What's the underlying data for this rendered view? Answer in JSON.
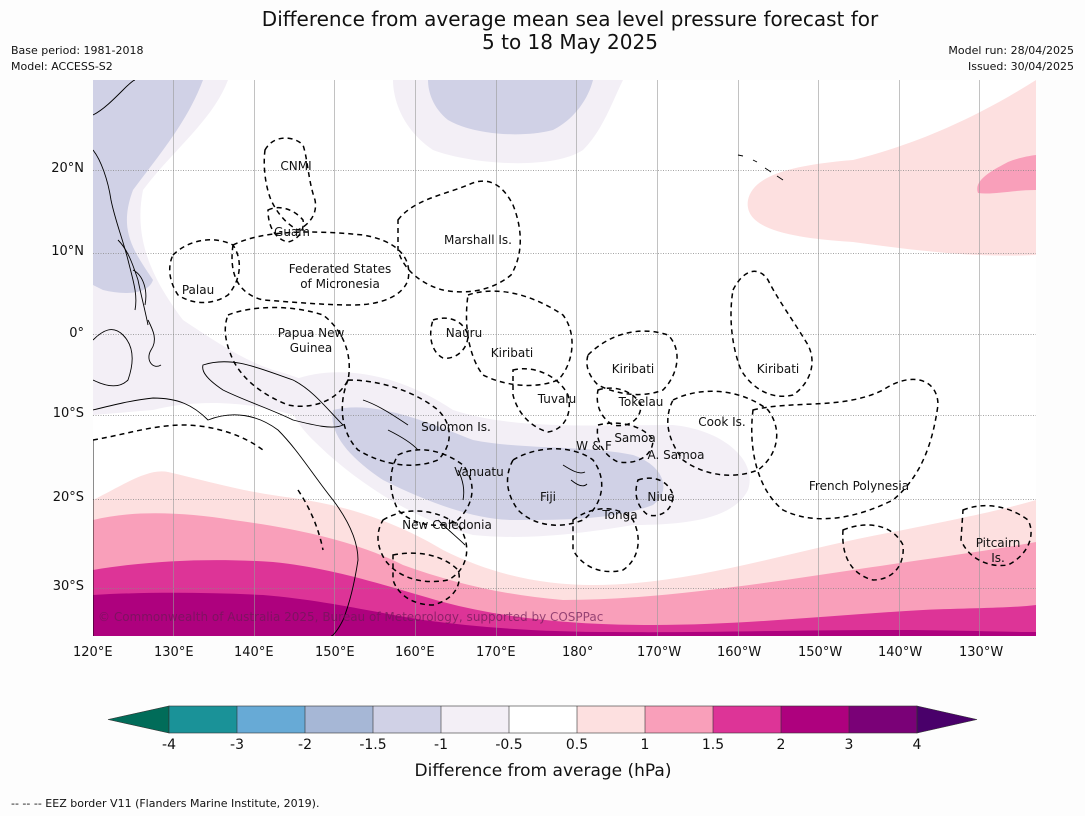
{
  "title": {
    "line1": "Difference from average mean sea level pressure forecast for",
    "line2": "5 to 18 May 2025"
  },
  "meta": {
    "base_period": "Base period: 1981-2018",
    "model": "Model: ACCESS-S2",
    "model_run": "Model run: 28/04/2025",
    "issued": "Issued: 30/04/2025"
  },
  "map": {
    "lon_ticks": [
      "120°E",
      "130°E",
      "140°E",
      "150°E",
      "160°E",
      "170°E",
      "180°",
      "170°W",
      "160°W",
      "150°W",
      "140°W",
      "130°W"
    ],
    "lat_ticks": [
      "20°N",
      "10°N",
      "0°",
      "10°S",
      "20°S",
      "30°S"
    ],
    "labels": {
      "cnmi": "CNMI",
      "guam": "Guam",
      "marshall": "Marshall Is.",
      "fsm1": "Federated States",
      "fsm2": "of Micronesia",
      "palau": "Palau",
      "png1": "Papua New",
      "png2": "Guinea",
      "nauru": "Nauru",
      "kiribati1": "Kiribati",
      "kiribati2": "Kiribati",
      "kiribati3": "Kiribati",
      "tuvalu": "Tuvalu",
      "tokelau": "Tokelau",
      "solomon": "Solomon Is.",
      "cook": "Cook Is.",
      "wf": "W & F",
      "samoa": "Samoa",
      "asamoa": "A. Samoa",
      "vanuatu": "Vanuatu",
      "fiji": "Fiji",
      "niue": "Niue",
      "tonga": "Tonga",
      "french_polynesia": "French Polynesia",
      "new_caledonia": "New Caledonia",
      "pitcairn1": "Pitcairn",
      "pitcairn2": "Is."
    },
    "copyright": "© Commonwealth of Australia 2025, Bureau of Meteorology, supported by COSPPac",
    "colors": {
      "ocean": "#ffffff",
      "neg_0_5": "#f3eff6",
      "neg_1": "#d0d1e6",
      "pos_0_5": "#fde0e0",
      "pos_1": "#f99fba",
      "pos_1_5": "#dd3497",
      "pos_2": "#ae017e",
      "land": "#000000"
    }
  },
  "colorbar": {
    "labels": [
      "-4",
      "-3",
      "-2",
      "-1.5",
      "-1",
      "-0.5",
      "0.5",
      "1",
      "1.5",
      "2",
      "3",
      "4"
    ],
    "colors": [
      "#016c59",
      "#1a9298",
      "#67aad6",
      "#a6b7d6",
      "#d0d1e6",
      "#f3eff6",
      "#ffffff",
      "#fde0e0",
      "#f99fba",
      "#dd3497",
      "#ae017e",
      "#7a0177",
      "#49006a"
    ],
    "title": "Difference from average (hPa)"
  },
  "footer": "-- -- -- EEZ border V11 (Flanders Marine Institute, 2019)."
}
